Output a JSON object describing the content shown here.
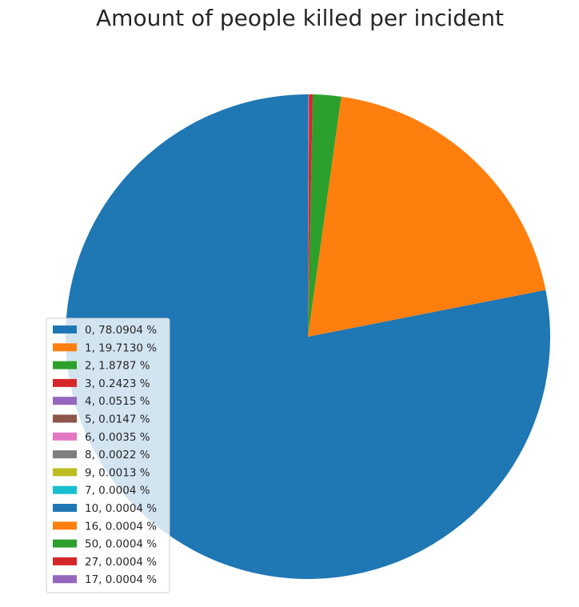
{
  "chart_data": {
    "type": "pie",
    "title": "Amount of people killed per incident",
    "start_angle_deg": 90,
    "direction": "counterclockwise",
    "legend_position": "lower-left",
    "slices": [
      {
        "label": "0, 78.0904 %",
        "value": 78.0904,
        "color": "#1f77b4"
      },
      {
        "label": "1, 19.7130 %",
        "value": 19.713,
        "color": "#ff7f0e"
      },
      {
        "label": "2, 1.8787 %",
        "value": 1.8787,
        "color": "#2ca02c"
      },
      {
        "label": "3, 0.2423 %",
        "value": 0.2423,
        "color": "#d62728"
      },
      {
        "label": "4, 0.0515 %",
        "value": 0.0515,
        "color": "#9467bd"
      },
      {
        "label": "5, 0.0147 %",
        "value": 0.0147,
        "color": "#8c564b"
      },
      {
        "label": "6, 0.0035 %",
        "value": 0.0035,
        "color": "#e377c2"
      },
      {
        "label": "8, 0.0022 %",
        "value": 0.0022,
        "color": "#7f7f7f"
      },
      {
        "label": "9, 0.0013 %",
        "value": 0.0013,
        "color": "#bcbd22"
      },
      {
        "label": "7, 0.0004 %",
        "value": 0.0004,
        "color": "#17becf"
      },
      {
        "label": "10, 0.0004 %",
        "value": 0.0004,
        "color": "#1f77b4"
      },
      {
        "label": "16, 0.0004 %",
        "value": 0.0004,
        "color": "#ff7f0e"
      },
      {
        "label": "50, 0.0004 %",
        "value": 0.0004,
        "color": "#2ca02c"
      },
      {
        "label": "27, 0.0004 %",
        "value": 0.0004,
        "color": "#d62728"
      },
      {
        "label": "17, 0.0004 %",
        "value": 0.0004,
        "color": "#9467bd"
      }
    ]
  }
}
